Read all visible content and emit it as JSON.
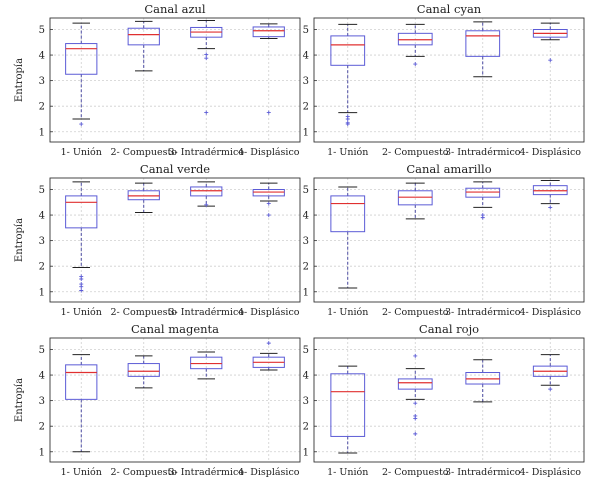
{
  "figure": {
    "ylabel": "Entropía"
  },
  "chart_data": [
    {
      "type": "box",
      "title": "Canal azul",
      "ylabel": "Entropía",
      "categories": [
        "1- Unión",
        "2- Compuesto",
        "3- Intradérmico",
        "4- Displásico"
      ],
      "ylim": [
        0.6,
        5.45
      ],
      "yticks": [
        1,
        2,
        3,
        4,
        5
      ],
      "grid": true,
      "boxes": [
        {
          "whisker_low": 1.5,
          "q1": 3.25,
          "median": 4.25,
          "q3": 4.45,
          "whisker_high": 5.25,
          "outliers": [
            1.3
          ]
        },
        {
          "whisker_low": 3.38,
          "q1": 4.4,
          "median": 4.8,
          "q3": 5.05,
          "whisker_high": 5.32,
          "outliers": []
        },
        {
          "whisker_low": 4.25,
          "q1": 4.7,
          "median": 4.9,
          "q3": 5.08,
          "whisker_high": 5.35,
          "outliers": [
            4.02,
            3.88,
            1.75
          ]
        },
        {
          "whisker_low": 4.65,
          "q1": 4.72,
          "median": 4.95,
          "q3": 5.1,
          "whisker_high": 5.22,
          "outliers": [
            1.75
          ]
        }
      ]
    },
    {
      "type": "box",
      "title": "Canal cyan",
      "ylabel": "",
      "categories": [
        "1- Unión",
        "2- Compuesto",
        "3- Intradérmico",
        "4- Displásico"
      ],
      "ylim": [
        0.6,
        5.45
      ],
      "yticks": [
        1,
        2,
        3,
        4,
        5
      ],
      "grid": true,
      "boxes": [
        {
          "whisker_low": 1.75,
          "q1": 3.6,
          "median": 4.4,
          "q3": 4.75,
          "whisker_high": 5.2,
          "outliers": [
            1.6,
            1.5,
            1.35,
            1.3
          ]
        },
        {
          "whisker_low": 3.95,
          "q1": 4.4,
          "median": 4.6,
          "q3": 4.85,
          "whisker_high": 5.2,
          "outliers": [
            3.65
          ]
        },
        {
          "whisker_low": 3.15,
          "q1": 3.95,
          "median": 4.75,
          "q3": 4.95,
          "whisker_high": 5.3,
          "outliers": []
        },
        {
          "whisker_low": 4.6,
          "q1": 4.7,
          "median": 4.85,
          "q3": 5.0,
          "whisker_high": 5.25,
          "outliers": [
            3.8
          ]
        }
      ]
    },
    {
      "type": "box",
      "title": "Canal verde",
      "ylabel": "Entropía",
      "categories": [
        "1- Unión",
        "2- Compuesto",
        "3- Intradérmico",
        "4- Displásico"
      ],
      "ylim": [
        0.6,
        5.45
      ],
      "yticks": [
        1,
        2,
        3,
        4,
        5
      ],
      "grid": true,
      "boxes": [
        {
          "whisker_low": 1.95,
          "q1": 3.5,
          "median": 4.5,
          "q3": 4.75,
          "whisker_high": 5.3,
          "outliers": [
            1.6,
            1.5,
            1.3,
            1.2,
            1.05
          ]
        },
        {
          "whisker_low": 4.1,
          "q1": 4.6,
          "median": 4.75,
          "q3": 4.95,
          "whisker_high": 5.25,
          "outliers": []
        },
        {
          "whisker_low": 4.35,
          "q1": 4.75,
          "median": 4.95,
          "q3": 5.1,
          "whisker_high": 5.3,
          "outliers": [
            4.4
          ]
        },
        {
          "whisker_low": 4.55,
          "q1": 4.75,
          "median": 4.9,
          "q3": 5.0,
          "whisker_high": 5.25,
          "outliers": [
            4.45,
            4.0
          ]
        }
      ]
    },
    {
      "type": "box",
      "title": "Canal amarillo",
      "ylabel": "",
      "categories": [
        "1- Unión",
        "2- Compuesto",
        "3- Intradérmico",
        "4- Displásico"
      ],
      "ylim": [
        0.6,
        5.45
      ],
      "yticks": [
        1,
        2,
        3,
        4,
        5
      ],
      "grid": true,
      "boxes": [
        {
          "whisker_low": 1.15,
          "q1": 3.35,
          "median": 4.45,
          "q3": 4.75,
          "whisker_high": 5.1,
          "outliers": []
        },
        {
          "whisker_low": 3.85,
          "q1": 4.4,
          "median": 4.7,
          "q3": 4.95,
          "whisker_high": 5.25,
          "outliers": []
        },
        {
          "whisker_low": 4.3,
          "q1": 4.7,
          "median": 4.9,
          "q3": 5.05,
          "whisker_high": 5.3,
          "outliers": [
            4.0,
            3.9
          ]
        },
        {
          "whisker_low": 4.45,
          "q1": 4.8,
          "median": 4.95,
          "q3": 5.15,
          "whisker_high": 5.35,
          "outliers": [
            4.3
          ]
        }
      ]
    },
    {
      "type": "box",
      "title": "Canal magenta",
      "ylabel": "Entropía",
      "categories": [
        "1- Unión",
        "2- Compuesto",
        "3- Intradérmico",
        "4- Displásico"
      ],
      "ylim": [
        0.6,
        5.45
      ],
      "yticks": [
        1,
        2,
        3,
        4,
        5
      ],
      "grid": true,
      "boxes": [
        {
          "whisker_low": 1.0,
          "q1": 3.05,
          "median": 4.1,
          "q3": 4.4,
          "whisker_high": 4.8,
          "outliers": []
        },
        {
          "whisker_low": 3.5,
          "q1": 3.95,
          "median": 4.15,
          "q3": 4.45,
          "whisker_high": 4.75,
          "outliers": []
        },
        {
          "whisker_low": 3.85,
          "q1": 4.25,
          "median": 4.45,
          "q3": 4.7,
          "whisker_high": 4.9,
          "outliers": []
        },
        {
          "whisker_low": 4.2,
          "q1": 4.3,
          "median": 4.5,
          "q3": 4.7,
          "whisker_high": 4.85,
          "outliers": [
            5.25
          ]
        }
      ]
    },
    {
      "type": "box",
      "title": "Canal rojo",
      "ylabel": "",
      "categories": [
        "1- Unión",
        "2- Compuesto",
        "3- Intradérmico",
        "4- Displásico"
      ],
      "ylim": [
        0.6,
        5.45
      ],
      "yticks": [
        1,
        2,
        3,
        4,
        5
      ],
      "grid": true,
      "boxes": [
        {
          "whisker_low": 0.95,
          "q1": 1.6,
          "median": 3.35,
          "q3": 4.05,
          "whisker_high": 4.35,
          "outliers": []
        },
        {
          "whisker_low": 3.05,
          "q1": 3.45,
          "median": 3.7,
          "q3": 3.85,
          "whisker_high": 4.25,
          "outliers": [
            4.75,
            2.9,
            2.4,
            2.3,
            1.7
          ]
        },
        {
          "whisker_low": 2.95,
          "q1": 3.65,
          "median": 3.85,
          "q3": 4.1,
          "whisker_high": 4.6,
          "outliers": []
        },
        {
          "whisker_low": 3.6,
          "q1": 3.95,
          "median": 4.15,
          "q3": 4.35,
          "whisker_high": 4.8,
          "outliers": [
            3.45
          ]
        }
      ]
    }
  ],
  "colors": {
    "box": "#5b5bd6",
    "median": "#e03030",
    "whisker": "#3a3a9a",
    "outlier": "#5b5bd6",
    "grid": "#cfcfcf",
    "axis": "#333333"
  }
}
